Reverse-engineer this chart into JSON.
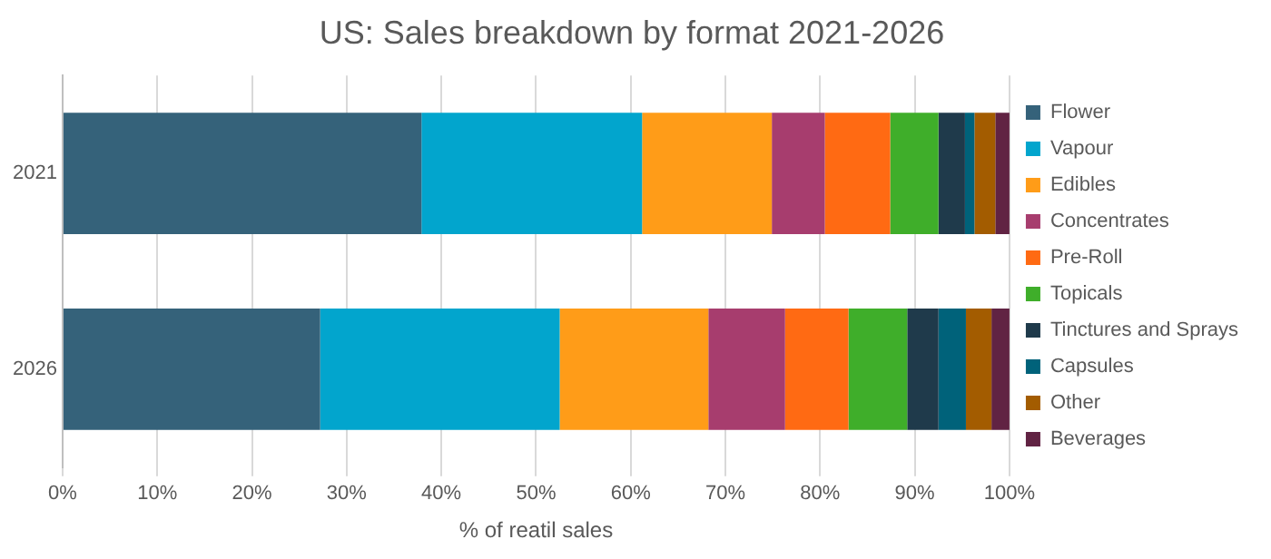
{
  "chart_data": {
    "type": "bar",
    "orientation": "horizontal",
    "stacked": true,
    "title": "US: Sales breakdown by format 2021-2026",
    "xlabel": "% of reatil sales",
    "categories": [
      "2021",
      "2026"
    ],
    "series": [
      {
        "name": "Flower",
        "color": "#35627a",
        "values": [
          37.9,
          27.2
        ]
      },
      {
        "name": "Vapour",
        "color": "#02a5cd",
        "values": [
          23.3,
          25.3
        ]
      },
      {
        "name": "Edibles",
        "color": "#ff9c18",
        "values": [
          13.7,
          15.7
        ]
      },
      {
        "name": "Concentrates",
        "color": "#a73d6e",
        "values": [
          5.6,
          8.1
        ]
      },
      {
        "name": "Pre-Roll",
        "color": "#ff6a13",
        "values": [
          6.9,
          6.7
        ]
      },
      {
        "name": "Topicals",
        "color": "#3fae2a",
        "values": [
          5.1,
          6.2
        ]
      },
      {
        "name": "Tinctures and Sprays",
        "color": "#1f3a4b",
        "values": [
          2.8,
          3.3
        ]
      },
      {
        "name": "Capsules",
        "color": "#00627a",
        "values": [
          1.0,
          2.9
        ]
      },
      {
        "name": "Other",
        "color": "#a35c00",
        "values": [
          2.2,
          2.7
        ]
      },
      {
        "name": "Beverages",
        "color": "#612343",
        "values": [
          1.5,
          1.9
        ]
      }
    ],
    "xlim": [
      0,
      100
    ],
    "xticks": [
      {
        "value": 0,
        "label": "0%"
      },
      {
        "value": 10,
        "label": "10%"
      },
      {
        "value": 20,
        "label": "20%"
      },
      {
        "value": 30,
        "label": "30%"
      },
      {
        "value": 40,
        "label": "40%"
      },
      {
        "value": 50,
        "label": "50%"
      },
      {
        "value": 60,
        "label": "60%"
      },
      {
        "value": 70,
        "label": "70%"
      },
      {
        "value": 80,
        "label": "80%"
      },
      {
        "value": 90,
        "label": "90%"
      },
      {
        "value": 100,
        "label": "100%"
      }
    ],
    "grid": "x",
    "legend": "right"
  }
}
